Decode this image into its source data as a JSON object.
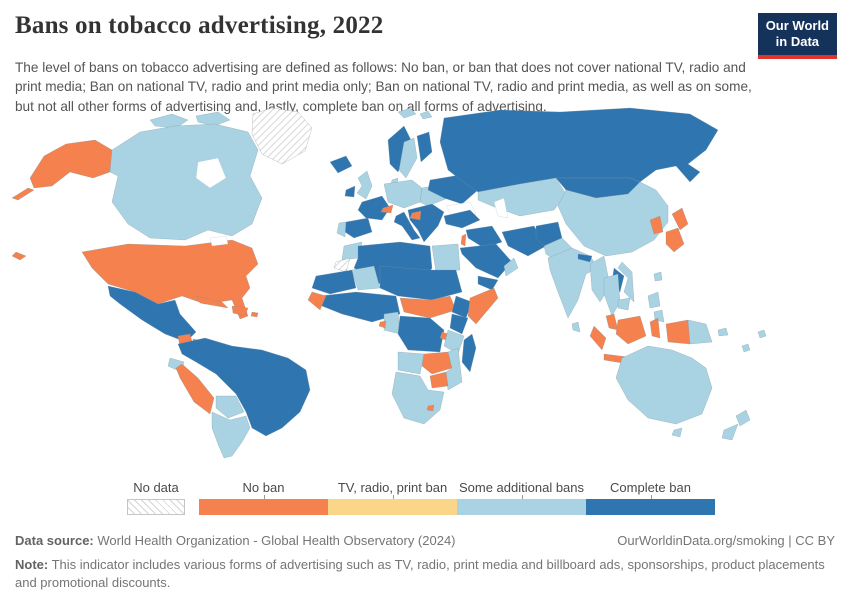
{
  "header": {
    "title": "Bans on tobacco advertising, 2022",
    "subtitle": "The level of bans on tobacco advertising are defined as follows: No ban, or ban that does not cover national TV, radio and print media; Ban on national TV, radio and print media only; Ban on national TV, radio and print media, as well as on some, but not all other forms of advertising and, lastly, complete ban on all forms of advertising.",
    "logo": {
      "line1": "Our World",
      "line2": "in Data",
      "bg_color": "#15325B",
      "accent_color": "#E0342C"
    }
  },
  "legend": {
    "no_data_label": "No data",
    "categories": [
      {
        "key": "no-ban",
        "label": "No ban",
        "color": "#F4814E"
      },
      {
        "key": "tv-radio-print",
        "label": "TV, radio, print ban",
        "color": "#FBD688"
      },
      {
        "key": "some-additional",
        "label": "Some additional bans",
        "color": "#A9D3E3"
      },
      {
        "key": "complete",
        "label": "Complete ban",
        "color": "#2F76B1"
      }
    ],
    "no_data_pattern": "diagonal-hatch"
  },
  "map": {
    "ocean_color": "#ffffff",
    "border_color": "#7d939f",
    "regions": {
      "greenland": "no-data",
      "western-sahara": "no-data",
      "alaska": "no-ban",
      "aleutians": "no-ban",
      "usa": "no-ban",
      "hawaii": "no-ban",
      "cuba": "no-ban",
      "hispaniola": "no-ban",
      "puerto-rico": "no-ban",
      "guatemala": "no-ban",
      "honduras": "no-ban",
      "peru": "no-ban",
      "switzerland": "no-ban",
      "bosnia": "no-ban",
      "israel": "no-ban",
      "guinea-sierra-leone": "no-ban",
      "eq-guinea": "no-ban",
      "car-south-sudan": "no-ban",
      "somalia": "no-ban",
      "rwanda-burundi": "no-ban",
      "zambia-malawi": "no-ban",
      "zimbabwe": "no-ban",
      "lesotho": "no-ban",
      "japan-north": "no-ban",
      "japan-south": "no-ban",
      "korea": "no-ban",
      "malaysia-peninsula": "no-ban",
      "borneo-malaysia": "no-ban",
      "sumatra": "no-ban",
      "java": "no-ban",
      "sulawesi": "no-ban",
      "png-west": "no-ban",
      "canada": "some-additional",
      "arctic-islands-1": "some-additional",
      "arctic-islands-2": "some-additional",
      "arctic-islands-3": "some-additional",
      "svalbard-1": "some-additional",
      "svalbard-2": "some-additional",
      "nicaragua": "some-additional",
      "ecuador": "some-additional",
      "bolivia": "some-additional",
      "chile-argentina": "some-additional",
      "uk": "some-additional",
      "sweden": "some-additional",
      "denmark": "some-additional",
      "germany-central": "some-additional",
      "eastern-europe": "some-additional",
      "portugal": "some-additional",
      "morocco": "some-additional",
      "egypt": "some-additional",
      "mali": "some-additional",
      "cameroon-gabon": "some-additional",
      "tanzania": "some-additional",
      "angola": "some-additional",
      "mozambique": "some-additional",
      "southern-africa": "some-additional",
      "oman": "some-additional",
      "kazakhstan-central-asia": "some-additional",
      "pakistan": "some-additional",
      "india": "some-additional",
      "sri-lanka": "some-additional",
      "china": "some-additional",
      "taiwan": "some-additional",
      "myanmar": "some-additional",
      "thailand": "some-additional",
      "vietnam": "some-additional",
      "cambodia": "some-additional",
      "philippines-1": "some-additional",
      "philippines-2": "some-additional",
      "png-east": "some-additional",
      "solomon": "some-additional",
      "fiji": "some-additional",
      "vanuatu": "some-additional",
      "australia": "some-additional",
      "tasmania": "some-additional",
      "new-zealand-north": "some-additional",
      "new-zealand-south": "some-additional",
      "mexico": "complete",
      "costa-rica-panama": "complete",
      "colombia-venezuela-brazil": "complete",
      "iceland": "complete",
      "ireland": "complete",
      "norway": "complete",
      "finland": "complete",
      "france": "complete",
      "spain": "complete",
      "italy": "complete",
      "balkans": "complete",
      "ukraine-belarus": "complete",
      "russia": "complete",
      "turkey": "complete",
      "syria-iraq": "complete",
      "saudi": "complete",
      "yemen": "complete",
      "iran": "complete",
      "afghanistan": "complete",
      "nepal": "complete",
      "mongolia": "complete",
      "laos": "complete",
      "algeria-libya": "complete",
      "mauritania-senegal": "complete",
      "niger-chad-sudan": "complete",
      "west-africa-coast": "complete",
      "ethiopia": "complete",
      "kenya": "complete",
      "drc": "complete",
      "madagascar": "complete"
    }
  },
  "footer": {
    "source_label": "Data source:",
    "source_text": " World Health Organization - Global Health Observatory (2024)",
    "link_text": "OurWorldinData.org/smoking | CC BY",
    "note_label": "Note:",
    "note_text": " This indicator includes various forms of advertising such as TV, radio, print media and billboard ads, sponsorships, product placements and promotional discounts."
  },
  "chart_data": {
    "type": "choropleth_map",
    "title": "Bans on tobacco advertising, 2022",
    "categories": [
      "No data",
      "No ban",
      "TV, radio, print ban",
      "Some additional bans",
      "Complete ban"
    ],
    "category_colors": {
      "No data": "hatched",
      "No ban": "#F4814E",
      "TV, radio, print ban": "#FBD688",
      "Some additional bans": "#A9D3E3",
      "Complete ban": "#2F76B1"
    },
    "legend_position": "bottom",
    "category_examples": {
      "No data": [
        "Greenland",
        "Western Sahara"
      ],
      "No ban": [
        "United States",
        "Cuba",
        "Dominican Republic",
        "Guatemala",
        "Honduras",
        "Peru",
        "Switzerland",
        "Bosnia and Herzegovina",
        "Israel",
        "Guinea",
        "Sierra Leone",
        "Central African Republic",
        "South Sudan",
        "Somalia",
        "Zambia",
        "Malawi",
        "Zimbabwe",
        "Lesotho",
        "Japan",
        "South Korea",
        "Malaysia",
        "Indonesia",
        "Papua New Guinea"
      ],
      "TV, radio, print ban": [],
      "Some additional bans": [
        "Canada",
        "Nicaragua",
        "Ecuador",
        "Bolivia",
        "Chile",
        "Argentina",
        "United Kingdom",
        "Sweden",
        "Germany",
        "Poland",
        "Portugal",
        "Morocco",
        "Egypt",
        "Mali",
        "Cameroon",
        "Tanzania",
        "Angola",
        "Mozambique",
        "Namibia",
        "Botswana",
        "South Africa",
        "Oman",
        "Kazakhstan",
        "Pakistan",
        "India",
        "China",
        "Myanmar",
        "Thailand",
        "Vietnam",
        "Cambodia",
        "Philippines",
        "Sri Lanka",
        "Australia",
        "New Zealand"
      ],
      "Complete ban": [
        "Mexico",
        "Costa Rica",
        "Panama",
        "Colombia",
        "Venezuela",
        "Brazil",
        "Iceland",
        "Ireland",
        "Norway",
        "Finland",
        "France",
        "Spain",
        "Italy",
        "Turkey",
        "Ukraine",
        "Russia",
        "Iran",
        "Afghanistan",
        "Saudi Arabia",
        "Yemen",
        "Algeria",
        "Libya",
        "Sudan",
        "Chad",
        "Niger",
        "Nigeria",
        "Ghana",
        "Senegal",
        "Ethiopia",
        "Kenya",
        "Democratic Republic of Congo",
        "Madagascar",
        "Mongolia",
        "Nepal",
        "Laos"
      ]
    }
  }
}
